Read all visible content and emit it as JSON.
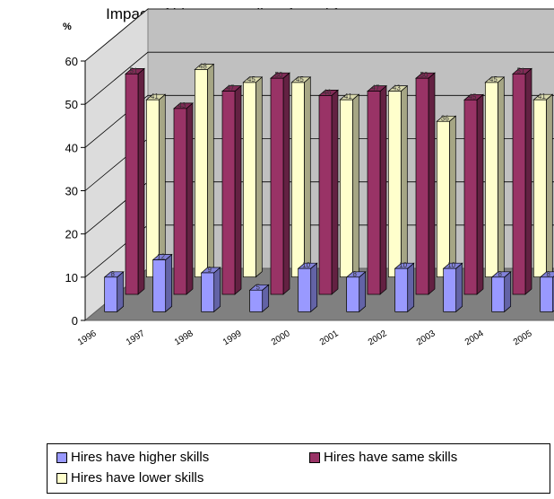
{
  "chart_data": {
    "type": "bar",
    "title": "Impact of hires on quality of w orkforce, 1996-2005",
    "ylabel": "%",
    "xlabel": "",
    "ylim": [
      0,
      60
    ],
    "yticks": [
      "0",
      "10",
      "20",
      "30",
      "40",
      "50",
      "60"
    ],
    "categories": [
      "1996",
      "1997",
      "1998",
      "1999",
      "2000",
      "2001",
      "2002",
      "2003",
      "2004",
      "2005"
    ],
    "series": [
      {
        "name": "Hires have higher skills",
        "color": "#9999ff",
        "values": [
          8,
          12,
          9,
          5,
          10,
          8,
          10,
          10,
          8,
          8
        ]
      },
      {
        "name": "Hires have same skills",
        "color": "#993366",
        "values": [
          51,
          43,
          47,
          50,
          46,
          47,
          50,
          45,
          51,
          49
        ]
      },
      {
        "name": "Hires have lower skills",
        "color": "#ffffcc",
        "values": [
          41,
          48,
          45,
          45,
          41,
          43,
          36,
          45,
          41,
          43
        ]
      }
    ],
    "grid": true,
    "legend_position": "bottom"
  }
}
